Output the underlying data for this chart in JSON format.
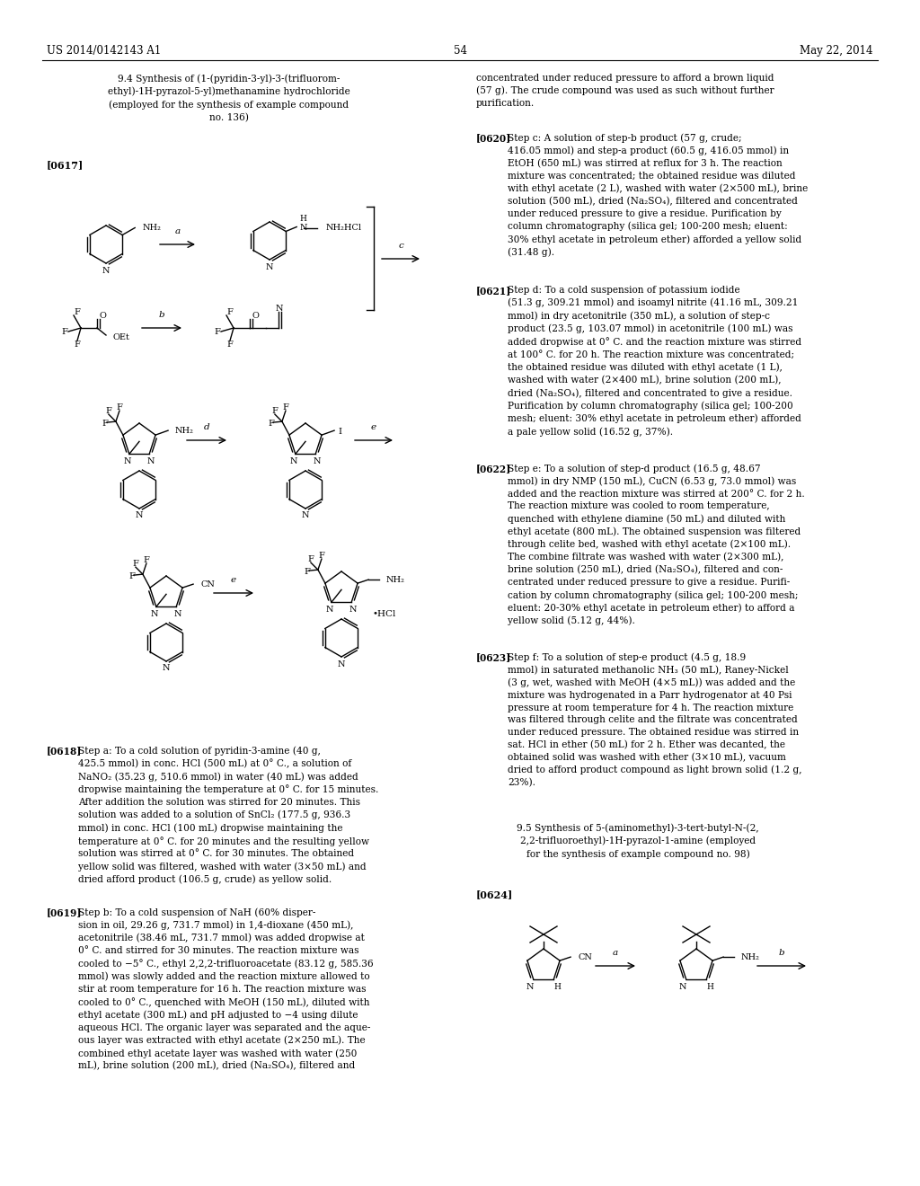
{
  "page_number": "54",
  "patent_number": "US 2014/0142143 A1",
  "patent_date": "May 22, 2014",
  "background_color": "#ffffff",
  "text_color": "#000000",
  "title_94": "9.4 Synthesis of (1-(pyridin-3-yl)-3-(trifluorom-\nethyl)-1H-pyrazol-5-yl)methanamine hydrochloride\n(employed for the synthesis of example compound\nno. 136)",
  "title_95": "9.5 Synthesis of 5-(aminomethyl)-3-tert-butyl-N-(2,\n2,2-trifluoroethyl)-1H-pyrazol-1-amine (employed\nfor the synthesis of example compound no. 98)",
  "lbl_0617": "[0617]",
  "lbl_0618": "[0618]",
  "lbl_0619": "[0619]",
  "lbl_0620": "[0620]",
  "lbl_0621": "[0621]",
  "lbl_0622": "[0622]",
  "lbl_0623": "[0623]",
  "lbl_0624": "[0624]",
  "txt_continued": "concentrated under reduced pressure to afford a brown liquid\n(57 g). The crude compound was used as such without further\npurification.",
  "txt_0618": "Step a: To a cold solution of pyridin-3-amine (40 g,\n425.5 mmol) in conc. HCl (500 mL) at 0° C., a solution of\nNaNO₂ (35.23 g, 510.6 mmol) in water (40 mL) was added\ndropwise maintaining the temperature at 0° C. for 15 minutes.\nAfter addition the solution was stirred for 20 minutes. This\nsolution was added to a solution of SnCl₂ (177.5 g, 936.3\nmmol) in conc. HCl (100 mL) dropwise maintaining the\ntemperature at 0° C. for 20 minutes and the resulting yellow\nsolution was stirred at 0° C. for 30 minutes. The obtained\nyellow solid was filtered, washed with water (3×50 mL) and\ndried afford product (106.5 g, crude) as yellow solid.",
  "txt_0619": "Step b: To a cold suspension of NaH (60% disper-\nsion in oil, 29.26 g, 731.7 mmol) in 1,4-dioxane (450 mL),\nacetonitrile (38.46 mL, 731.7 mmol) was added dropwise at\n0° C. and stirred for 30 minutes. The reaction mixture was\ncooled to −5° C., ethyl 2,2,2-trifluoroacetate (83.12 g, 585.36\nmmol) was slowly added and the reaction mixture allowed to\nstir at room temperature for 16 h. The reaction mixture was\ncooled to 0° C., quenched with MeOH (150 mL), diluted with\nethyl acetate (300 mL) and pH adjusted to −4 using dilute\naqueous HCl. The organic layer was separated and the aque-\nous layer was extracted with ethyl acetate (2×250 mL). The\ncombined ethyl acetate layer was washed with water (250\nmL), brine solution (200 mL), dried (Na₂SO₄), filtered and",
  "txt_0620": "Step c: A solution of step-b product (57 g, crude;\n416.05 mmol) and step-a product (60.5 g, 416.05 mmol) in\nEtOH (650 mL) was stirred at reflux for 3 h. The reaction\nmixture was concentrated; the obtained residue was diluted\nwith ethyl acetate (2 L), washed with water (2×500 mL), brine\nsolution (500 mL), dried (Na₂SO₄), filtered and concentrated\nunder reduced pressure to give a residue. Purification by\ncolumn chromatography (silica gel; 100-200 mesh; eluent:\n30% ethyl acetate in petroleum ether) afforded a yellow solid\n(31.48 g).",
  "txt_0621": "Step d: To a cold suspension of potassium iodide\n(51.3 g, 309.21 mmol) and isoamyl nitrite (41.16 mL, 309.21\nmmol) in dry acetonitrile (350 mL), a solution of step-c\nproduct (23.5 g, 103.07 mmol) in acetonitrile (100 mL) was\nadded dropwise at 0° C. and the reaction mixture was stirred\nat 100° C. for 20 h. The reaction mixture was concentrated;\nthe obtained residue was diluted with ethyl acetate (1 L),\nwashed with water (2×400 mL), brine solution (200 mL),\ndried (Na₂SO₄), filtered and concentrated to give a residue.\nPurification by column chromatography (silica gel; 100-200\nmesh; eluent: 30% ethyl acetate in petroleum ether) afforded\na pale yellow solid (16.52 g, 37%).",
  "txt_0622": "Step e: To a solution of step-d product (16.5 g, 48.67\nmmol) in dry NMP (150 mL), CuCN (6.53 g, 73.0 mmol) was\nadded and the reaction mixture was stirred at 200° C. for 2 h.\nThe reaction mixture was cooled to room temperature,\nquenched with ethylene diamine (50 mL) and diluted with\nethyl acetate (800 mL). The obtained suspension was filtered\nthrough celite bed, washed with ethyl acetate (2×100 mL).\nThe combine filtrate was washed with water (2×300 mL),\nbrine solution (250 mL), dried (Na₂SO₄), filtered and con-\ncentrated under reduced pressure to give a residue. Purifi-\ncation by column chromatography (silica gel; 100-200 mesh;\neluent: 20-30% ethyl acetate in petroleum ether) to afford a\nyellow solid (5.12 g, 44%).",
  "txt_0623": "Step f: To a solution of step-e product (4.5 g, 18.9\nmmol) in saturated methanolic NH₃ (50 mL), Raney-Nickel\n(3 g, wet, washed with MeOH (4×5 mL)) was added and the\nmixture was hydrogenated in a Parr hydrogenator at 40 Psi\npressure at room temperature for 4 h. The reaction mixture\nwas filtered through celite and the filtrate was concentrated\nunder reduced pressure. The obtained residue was stirred in\nsat. HCl in ether (50 mL) for 2 h. Ether was decanted, the\nobtained solid was washed with ether (3×10 mL), vacuum\ndried to afford product compound as light brown solid (1.2 g,\n23%)."
}
